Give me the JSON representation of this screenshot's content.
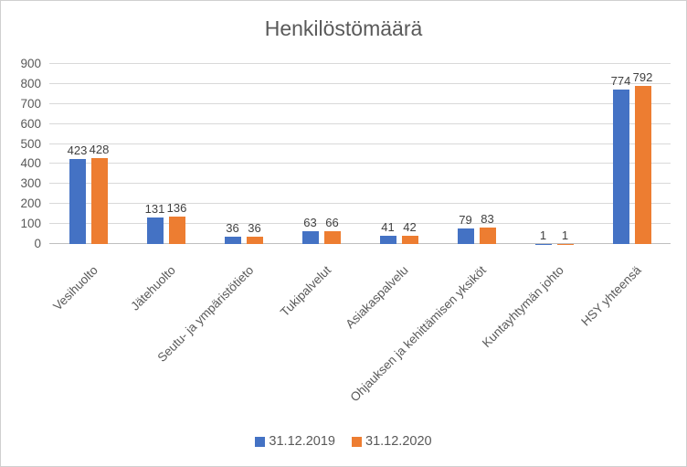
{
  "window": {
    "background": "#FFFFFF",
    "border_color": "#D0D0D0"
  },
  "chart_data": {
    "type": "bar",
    "title": "Henkilöstömäärä",
    "categories": [
      "Vesihuolto",
      "Jätehuolto",
      "Seutu- ja ympäristötieto",
      "Tukipalvelut",
      "Asiakaspalvelu",
      "Ohjauksen ja kehittämisen yksiköt",
      "Kuntayhtymän johto",
      "HSY yhteensä"
    ],
    "series": [
      {
        "name": "31.12.2019",
        "color": "#4472C4",
        "values": [
          423,
          131,
          36,
          63,
          41,
          79,
          1,
          774
        ]
      },
      {
        "name": "31.12.2020",
        "color": "#ED7D31",
        "values": [
          428,
          136,
          36,
          66,
          42,
          83,
          1,
          792
        ]
      }
    ],
    "ylim": [
      0,
      900
    ],
    "yticks": [
      0,
      100,
      200,
      300,
      400,
      500,
      600,
      700,
      800,
      900
    ],
    "grid": true,
    "gridline_color": "#D9D9D9",
    "axis_line_color": "#BFBFBF",
    "text_color": "#595959",
    "data_label_color": "#404040",
    "data_labels": true,
    "legend_position": "bottom",
    "category_label_rotation": -45,
    "xlabel": "",
    "ylabel": ""
  }
}
